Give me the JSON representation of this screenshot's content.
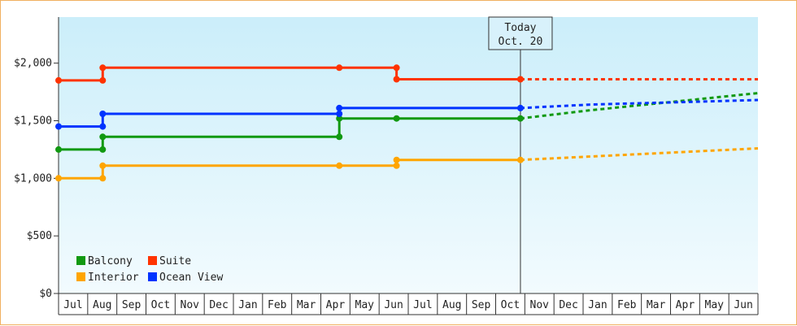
{
  "chart_data": {
    "type": "line",
    "style": "step",
    "ylim": [
      0,
      2400
    ],
    "y_ticks": [
      "$0",
      "$500",
      "$1,000",
      "$1,500",
      "$2,000"
    ],
    "y_tick_values": [
      0,
      500,
      1000,
      1500,
      2000
    ],
    "months": [
      "Jul",
      "Aug",
      "Sep",
      "Oct",
      "Nov",
      "Dec",
      "Jan",
      "Feb",
      "Mar",
      "Apr",
      "May",
      "Jun",
      "Jul",
      "Aug",
      "Sep",
      "Oct",
      "Nov",
      "Dec",
      "Jan",
      "Feb",
      "Mar",
      "Apr",
      "May",
      "Jun"
    ],
    "x_start": "2024-06-15",
    "x_end": "2026-06-30",
    "today": {
      "date": "2025-10-20",
      "label_line1": "Today",
      "label_line2": "Oct. 20"
    },
    "series": [
      {
        "name": "Balcony",
        "color": "#119911",
        "points": [
          [
            "2024-06-15",
            1250
          ],
          [
            "2024-08-01",
            1250
          ],
          [
            "2024-08-01",
            1360
          ],
          [
            "2025-04-10",
            1360
          ],
          [
            "2025-04-10",
            1520
          ],
          [
            "2025-06-10",
            1520
          ],
          [
            "2025-10-20",
            1520
          ]
        ],
        "markers": [
          [
            "2024-06-15",
            1250
          ],
          [
            "2024-08-01",
            1250
          ],
          [
            "2024-08-01",
            1360
          ],
          [
            "2025-04-10",
            1360
          ],
          [
            "2025-04-10",
            1520
          ],
          [
            "2025-06-10",
            1520
          ],
          [
            "2025-10-20",
            1520
          ]
        ],
        "forecast": [
          [
            "2025-10-20",
            1520
          ],
          [
            "2026-01-01",
            1590
          ],
          [
            "2026-06-30",
            1740
          ]
        ]
      },
      {
        "name": "Suite",
        "color": "#ff3300",
        "points": [
          [
            "2024-06-15",
            1850
          ],
          [
            "2024-08-01",
            1850
          ],
          [
            "2024-08-01",
            1960
          ],
          [
            "2025-04-10",
            1960
          ],
          [
            "2025-06-10",
            1960
          ],
          [
            "2025-06-10",
            1860
          ],
          [
            "2025-10-20",
            1860
          ]
        ],
        "markers": [
          [
            "2024-06-15",
            1850
          ],
          [
            "2024-08-01",
            1850
          ],
          [
            "2024-08-01",
            1960
          ],
          [
            "2025-04-10",
            1960
          ],
          [
            "2025-06-10",
            1960
          ],
          [
            "2025-06-10",
            1860
          ],
          [
            "2025-10-20",
            1860
          ]
        ],
        "forecast": [
          [
            "2025-10-20",
            1860
          ],
          [
            "2026-06-30",
            1860
          ]
        ]
      },
      {
        "name": "Interior",
        "color": "#ffa500",
        "points": [
          [
            "2024-06-15",
            1000
          ],
          [
            "2024-08-01",
            1000
          ],
          [
            "2024-08-01",
            1110
          ],
          [
            "2025-04-10",
            1110
          ],
          [
            "2025-06-10",
            1110
          ],
          [
            "2025-06-10",
            1160
          ],
          [
            "2025-10-20",
            1160
          ]
        ],
        "markers": [
          [
            "2024-06-15",
            1000
          ],
          [
            "2024-08-01",
            1000
          ],
          [
            "2024-08-01",
            1110
          ],
          [
            "2025-04-10",
            1110
          ],
          [
            "2025-06-10",
            1110
          ],
          [
            "2025-06-10",
            1160
          ],
          [
            "2025-10-20",
            1160
          ]
        ],
        "forecast": [
          [
            "2025-10-20",
            1160
          ],
          [
            "2026-06-30",
            1260
          ]
        ]
      },
      {
        "name": "Ocean View",
        "color": "#0033ff",
        "points": [
          [
            "2024-06-15",
            1450
          ],
          [
            "2024-08-01",
            1450
          ],
          [
            "2024-08-01",
            1560
          ],
          [
            "2025-04-10",
            1560
          ],
          [
            "2025-04-10",
            1610
          ],
          [
            "2025-10-20",
            1610
          ]
        ],
        "markers": [
          [
            "2024-06-15",
            1450
          ],
          [
            "2024-08-01",
            1450
          ],
          [
            "2024-08-01",
            1560
          ],
          [
            "2025-04-10",
            1560
          ],
          [
            "2025-04-10",
            1610
          ],
          [
            "2025-10-20",
            1610
          ]
        ],
        "forecast": [
          [
            "2025-10-20",
            1610
          ],
          [
            "2026-01-01",
            1640
          ],
          [
            "2026-06-30",
            1680
          ]
        ]
      }
    ],
    "legend": [
      {
        "name": "Balcony",
        "color": "#119911"
      },
      {
        "name": "Suite",
        "color": "#ff3300"
      },
      {
        "name": "Interior",
        "color": "#ffa500"
      },
      {
        "name": "Ocean View",
        "color": "#0033ff"
      }
    ],
    "legend_position": "bottom-left",
    "grid": false
  }
}
